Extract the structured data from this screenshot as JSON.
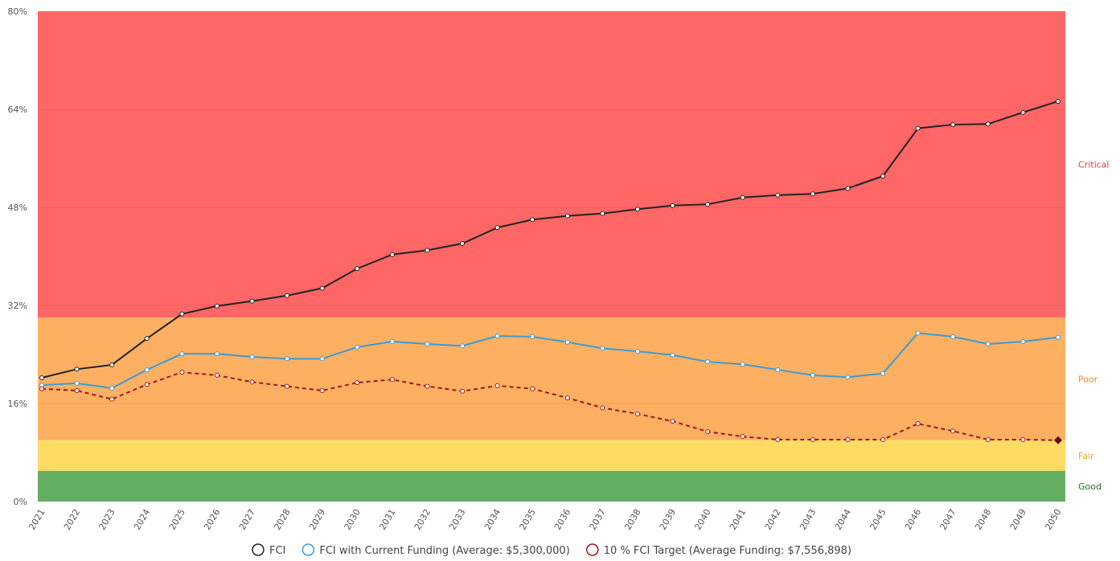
{
  "chart_data": {
    "type": "line",
    "categories": [
      "2021",
      "2022",
      "2023",
      "2024",
      "2025",
      "2026",
      "2027",
      "2028",
      "2029",
      "2030",
      "2031",
      "2032",
      "2033",
      "2034",
      "2035",
      "2036",
      "2037",
      "2038",
      "2039",
      "2040",
      "2041",
      "2042",
      "2043",
      "2044",
      "2045",
      "2046",
      "2047",
      "2048",
      "2049",
      "2050"
    ],
    "ylim": [
      0,
      80
    ],
    "yticks": [
      {
        "value": 0,
        "label": "0%"
      },
      {
        "value": 16,
        "label": "16%"
      },
      {
        "value": 32,
        "label": "32%"
      },
      {
        "value": 48,
        "label": "48%"
      },
      {
        "value": 64,
        "label": "64%"
      },
      {
        "value": 80,
        "label": "80%"
      }
    ],
    "grid": true,
    "bands": [
      {
        "name": "Critical",
        "from": 30,
        "to": 80,
        "color": "#ff6666",
        "label_color": "#e83a3a"
      },
      {
        "name": "Poor",
        "from": 10,
        "to": 30,
        "color": "#fdb062",
        "label_color": "#f08a30"
      },
      {
        "name": "Fair",
        "from": 5,
        "to": 10,
        "color": "#fedc64",
        "label_color": "#e0b020"
      },
      {
        "name": "Good",
        "from": 0,
        "to": 5,
        "color": "#64ae62",
        "label_color": "#2e6b2e"
      }
    ],
    "series": [
      {
        "name": "FCI",
        "color": "#222222",
        "dashed": false,
        "values": [
          20.2,
          21.6,
          22.3,
          26.6,
          30.6,
          31.9,
          32.7,
          33.6,
          34.8,
          38.0,
          40.3,
          41.0,
          42.1,
          44.7,
          46.0,
          46.6,
          47.0,
          47.7,
          48.3,
          48.5,
          49.6,
          50.0,
          50.2,
          51.1,
          53.1,
          60.9,
          61.5,
          61.6,
          63.5,
          65.3
        ]
      },
      {
        "name": "FCI with Current Funding (Average: $5,300,000)",
        "color": "#3a9bd5",
        "dashed": false,
        "values": [
          19.0,
          19.3,
          18.5,
          21.5,
          24.1,
          24.1,
          23.6,
          23.3,
          23.3,
          25.2,
          26.1,
          25.7,
          25.4,
          27.0,
          26.9,
          26.0,
          25.0,
          24.5,
          23.9,
          22.8,
          22.4,
          21.5,
          20.6,
          20.3,
          20.9,
          27.5,
          26.9,
          25.7,
          26.1,
          26.8
        ]
      },
      {
        "name": "10 % FCI Target (Average Funding: $7,556,898)",
        "color": "#a01818",
        "dashed": true,
        "last_marker": "diamond",
        "values": [
          18.4,
          18.1,
          16.7,
          19.1,
          21.1,
          20.6,
          19.5,
          18.8,
          18.1,
          19.4,
          19.9,
          18.8,
          18.0,
          18.9,
          18.4,
          16.9,
          15.3,
          14.3,
          13.1,
          11.4,
          10.6,
          10.1,
          10.1,
          10.1,
          10.1,
          12.7,
          11.5,
          10.1,
          10.1,
          10.0
        ]
      }
    ]
  }
}
